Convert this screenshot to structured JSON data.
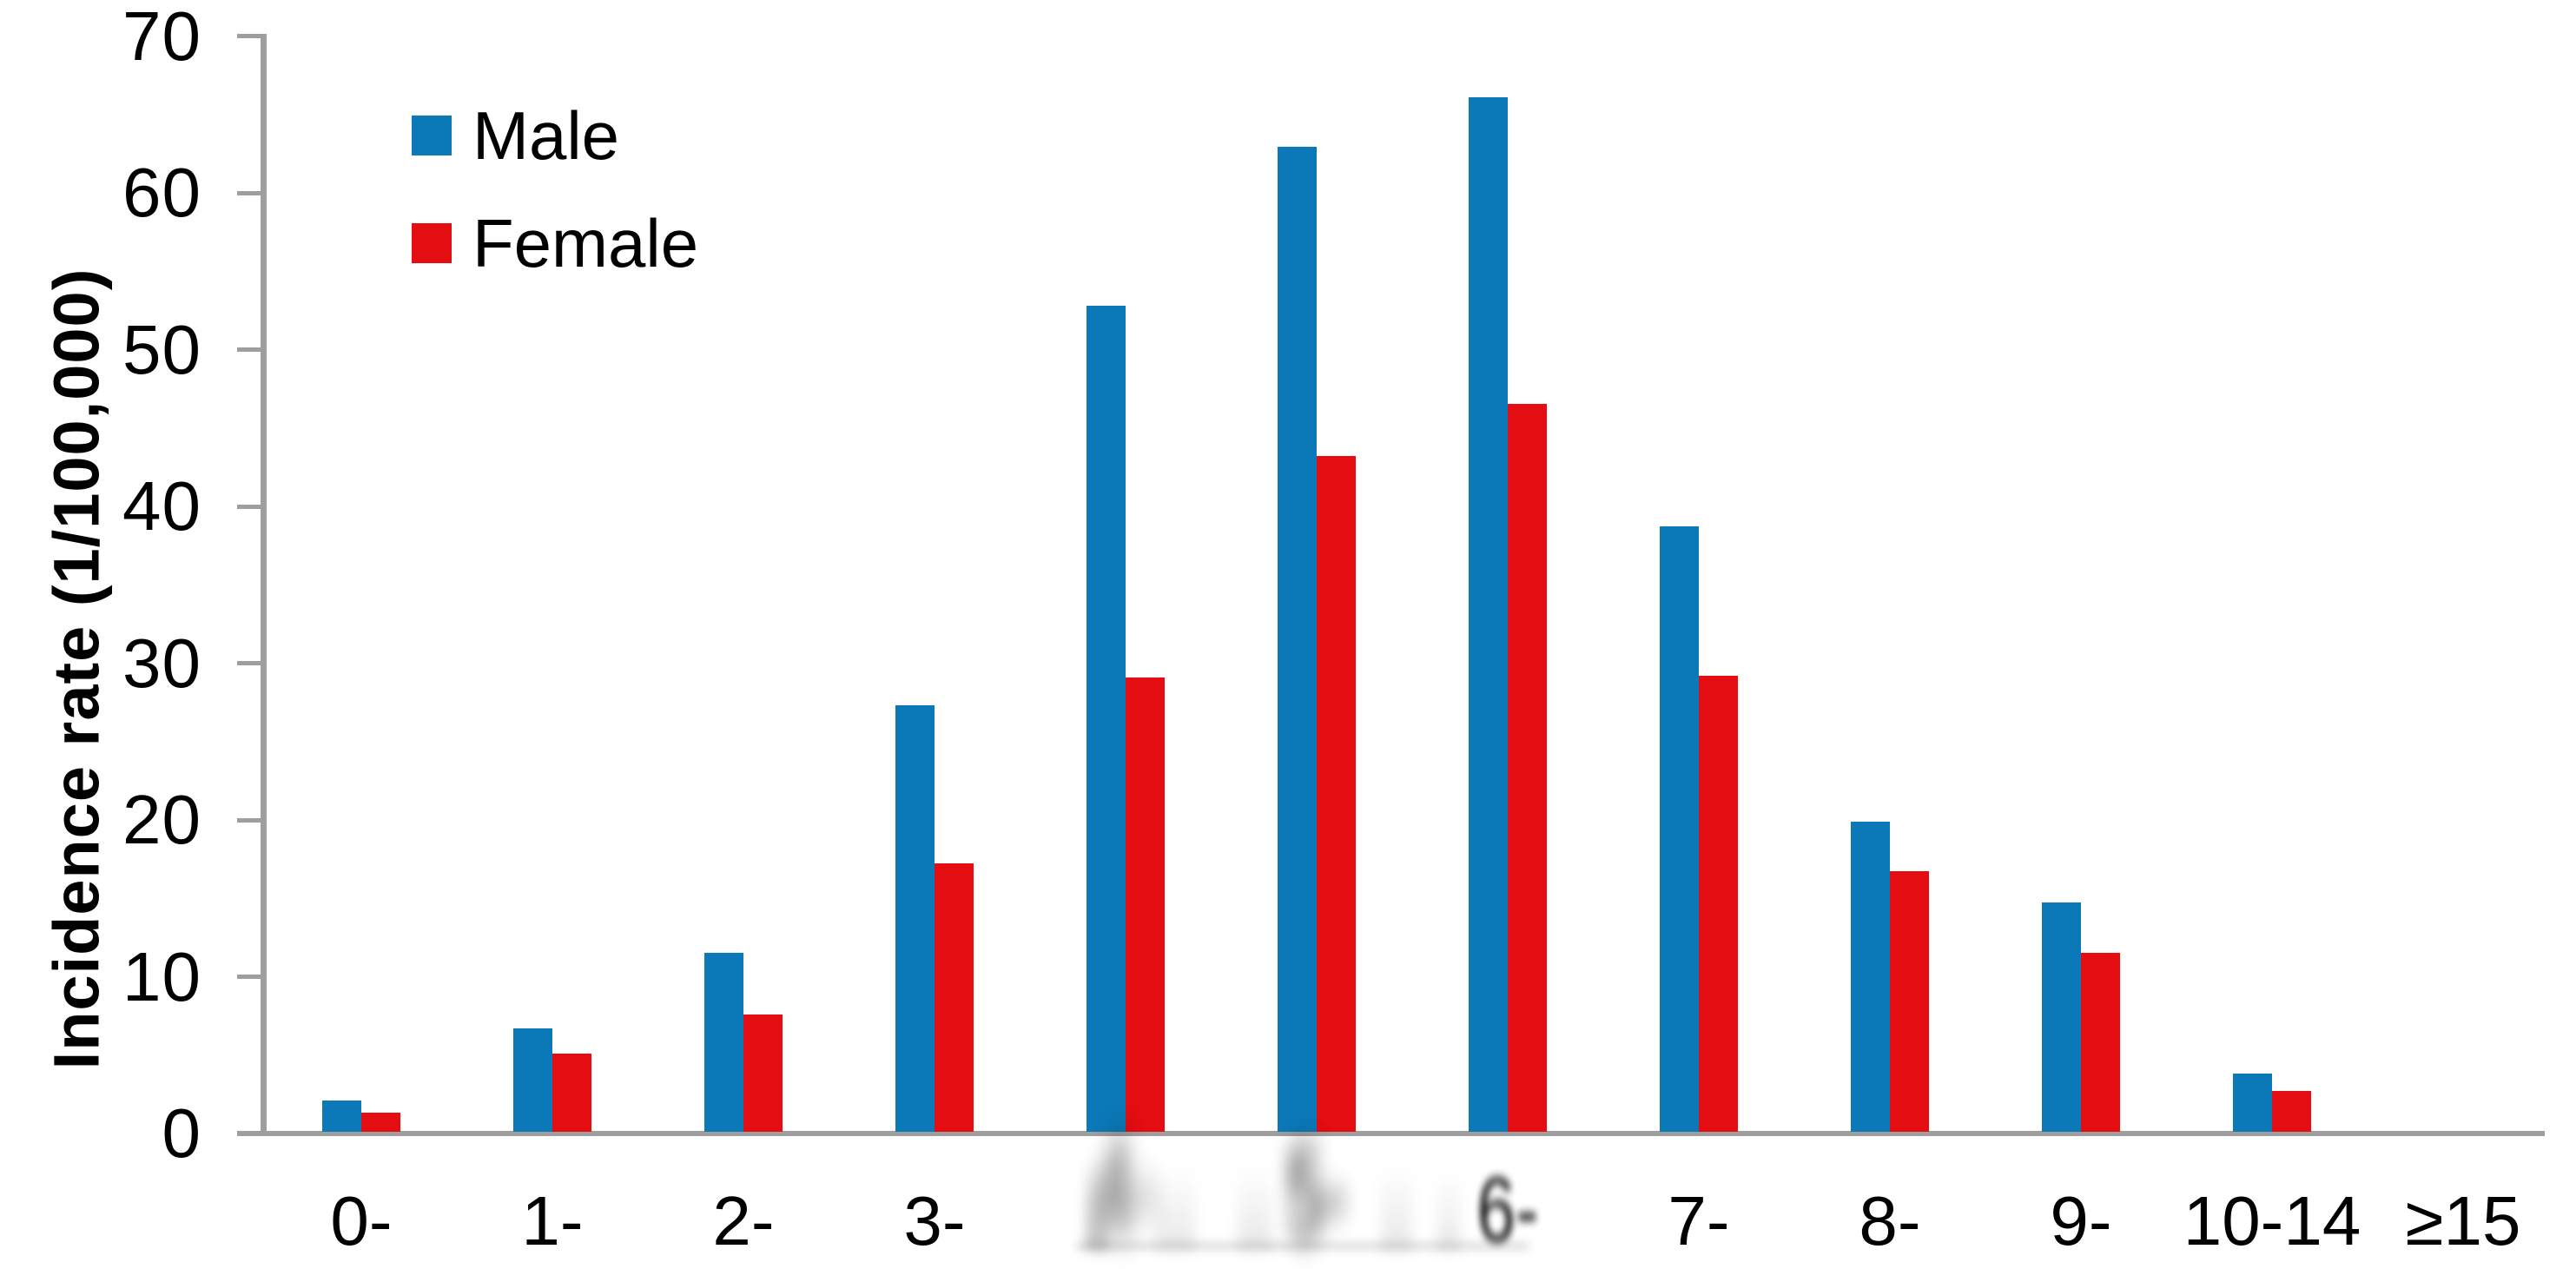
{
  "chart_data": {
    "type": "bar",
    "title": "",
    "xlabel": "",
    "ylabel": "Incidence rate (1/100,000)",
    "ylim": [
      0,
      70
    ],
    "yticks": [
      0,
      10,
      20,
      30,
      40,
      50,
      60,
      70
    ],
    "grid": false,
    "legend_position": "upper-left-inside",
    "categories": [
      "0-",
      "1-",
      "2-",
      "3-",
      "4-",
      "5-",
      "6-",
      "7-",
      "8-",
      "9-",
      "10-14",
      "≥15"
    ],
    "blurred_category_indices": [
      4,
      5,
      6
    ],
    "series": [
      {
        "name": "Male",
        "color": "#0b79b7",
        "values": [
          2.0,
          6.6,
          11.4,
          27.2,
          52.7,
          62.8,
          66.0,
          38.6,
          19.8,
          14.6,
          3.7,
          0
        ]
      },
      {
        "name": "Female",
        "color": "#e30d12",
        "values": [
          1.2,
          5.0,
          7.5,
          17.1,
          29.0,
          43.1,
          46.4,
          29.1,
          16.6,
          11.4,
          2.6,
          0
        ]
      }
    ],
    "axis_color": "#9e9e9e",
    "text_color": "#000000"
  }
}
